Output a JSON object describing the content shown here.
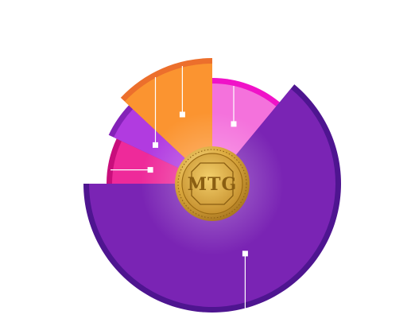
{
  "chart_data": {
    "type": "pie",
    "title": "",
    "legend": "none",
    "slices": [
      {
        "value": 11,
        "color": "#f472dc",
        "rim": "#f012c8"
      },
      {
        "value": 64,
        "color": "#7a24b4",
        "rim": "#4e1590"
      },
      {
        "value": 7,
        "color": "#ee2a9a",
        "rim": "#c80e7c"
      },
      {
        "value": 5,
        "color": "#b13be0",
        "rim": "#8422b8"
      },
      {
        "value": 13,
        "color": "#fb9430",
        "rim": "#ec6f2c"
      }
    ]
  },
  "coin": {
    "label": "MTG",
    "logo": "mtg-coin-logo",
    "colors": {
      "outer": "#c8922e",
      "inner": "#e8b94a",
      "mark": "#9b6a14"
    }
  },
  "colors": {
    "background": "#ffffff",
    "leader": "#ffffff",
    "marker": "#ffffff"
  }
}
